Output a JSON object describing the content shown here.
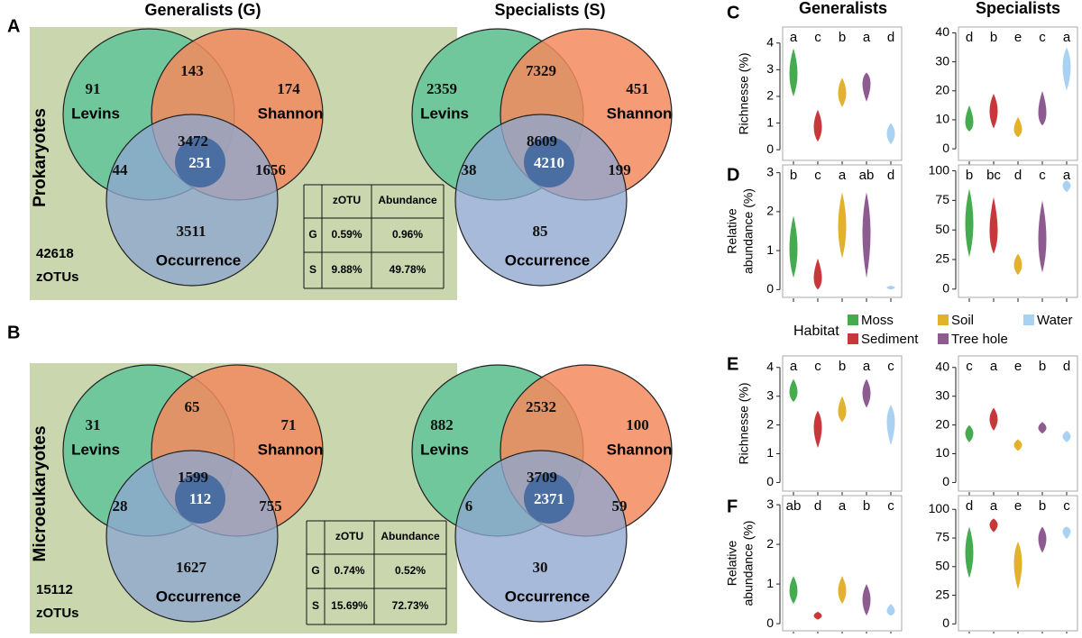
{
  "headers": [
    "Generalists (G)",
    "Specialists (S)"
  ],
  "violin_headers": [
    "Generalists",
    "Specialists"
  ],
  "legend": {
    "title": "Habitat",
    "items": [
      {
        "name": "Moss",
        "color": "#45ab4f"
      },
      {
        "name": "Sediment",
        "color": "#c8383b"
      },
      {
        "name": "Soil",
        "color": "#e2b22c"
      },
      {
        "name": "Tree hole",
        "color": "#8e5b91"
      },
      {
        "name": "Water",
        "color": "#a9d2f2"
      }
    ]
  },
  "chart_data": [
    {
      "type": "venn",
      "label": "A",
      "group": "Prokaryotes",
      "total": "42618",
      "total_unit": "zOTUs",
      "sets": [
        "Levins",
        "Shannon",
        "Occurrence"
      ],
      "diagrams": [
        {
          "counts": [
            "91",
            "143",
            "174",
            "3472",
            "251",
            "44",
            "1656",
            "3511"
          ]
        },
        {
          "counts": [
            "2359",
            "7329",
            "451",
            "8609",
            "4210",
            "38",
            "199",
            "85"
          ]
        }
      ],
      "table": {
        "header": [
          "zOTU",
          "Abundance"
        ],
        "rows": [
          [
            "G",
            "0.59%",
            "0.96%"
          ],
          [
            "S",
            "9.88%",
            "49.78%"
          ]
        ]
      }
    },
    {
      "type": "venn",
      "label": "B",
      "group": "Microeukaryotes",
      "total": "15112",
      "total_unit": "zOTUs",
      "sets": [
        "Levins",
        "Shannon",
        "Occurrence"
      ],
      "diagrams": [
        {
          "counts": [
            "31",
            "65",
            "71",
            "1599",
            "112",
            "28",
            "755",
            "1627"
          ]
        },
        {
          "counts": [
            "882",
            "2532",
            "100",
            "3709",
            "2371",
            "6",
            "59",
            "30"
          ]
        }
      ],
      "table": {
        "header": [
          "zOTU",
          "Abundance"
        ],
        "rows": [
          [
            "G",
            "0.74%",
            "0.52%"
          ],
          [
            "S",
            "15.69%",
            "72.73%"
          ]
        ]
      }
    },
    {
      "type": "violin",
      "label": "C",
      "ylabel": [
        "Richnesse (%)"
      ],
      "plots": [
        {
          "ylim": [
            -0.4,
            4.6
          ],
          "yticks": [
            0,
            1,
            2,
            3,
            4
          ],
          "letters": [
            "a",
            "c",
            "b",
            "a",
            "d"
          ],
          "low": [
            2.0,
            0.3,
            1.6,
            1.8,
            0.2
          ],
          "mid": [
            2.8,
            0.8,
            2.1,
            2.6,
            0.6
          ],
          "high": [
            3.8,
            1.5,
            2.7,
            2.9,
            1.0
          ]
        },
        {
          "ylim": [
            -4,
            42
          ],
          "yticks": [
            0,
            10,
            20,
            30,
            40
          ],
          "letters": [
            "d",
            "b",
            "e",
            "c",
            "a"
          ],
          "low": [
            6,
            7,
            4,
            8,
            20
          ],
          "mid": [
            8,
            13,
            6,
            11,
            29
          ],
          "high": [
            15,
            19,
            11,
            20,
            35
          ]
        }
      ]
    },
    {
      "type": "violin",
      "label": "D",
      "ylabel": [
        "Relative",
        "abundance (%)"
      ],
      "plots": [
        {
          "ylim": [
            -0.2,
            3.2
          ],
          "yticks": [
            0,
            1,
            2,
            3
          ],
          "letters": [
            "b",
            "c",
            "a",
            "ab",
            "d"
          ],
          "low": [
            0.3,
            0,
            0.8,
            0.3,
            0
          ],
          "mid": [
            1.0,
            0.2,
            1.6,
            1.5,
            0.05
          ],
          "high": [
            1.9,
            0.8,
            2.5,
            2.5,
            0.1
          ]
        },
        {
          "ylim": [
            -7,
            105
          ],
          "yticks": [
            0,
            25,
            50,
            75,
            100
          ],
          "letters": [
            "b",
            "bc",
            "d",
            "c",
            "a"
          ],
          "low": [
            27,
            30,
            12,
            14,
            82
          ],
          "mid": [
            55,
            45,
            20,
            40,
            88
          ],
          "high": [
            85,
            78,
            30,
            75,
            92
          ]
        }
      ]
    },
    {
      "type": "violin",
      "label": "E",
      "ylabel": [
        "Richnesse (%)"
      ],
      "plots": [
        {
          "ylim": [
            -0.3,
            4.4
          ],
          "yticks": [
            0,
            1,
            2,
            3,
            4
          ],
          "letters": [
            "a",
            "c",
            "b",
            "a",
            "c"
          ],
          "low": [
            2.8,
            1.2,
            2.1,
            2.6,
            1.3
          ],
          "mid": [
            3.1,
            2.0,
            2.4,
            3.1,
            2.2
          ],
          "high": [
            3.6,
            2.5,
            3.0,
            3.6,
            2.7
          ]
        },
        {
          "ylim": [
            -3,
            44
          ],
          "yticks": [
            0,
            10,
            20,
            30,
            40
          ],
          "letters": [
            "c",
            "a",
            "e",
            "b",
            "d"
          ],
          "low": [
            14,
            18,
            11,
            17,
            14
          ],
          "mid": [
            17,
            22,
            13,
            19,
            16
          ],
          "high": [
            20,
            26,
            15,
            21,
            18
          ]
        }
      ]
    },
    {
      "type": "violin",
      "label": "F",
      "ylabel": [
        "Relative",
        "abundance (%)"
      ],
      "plots": [
        {
          "ylim": [
            -0.18,
            3.23
          ],
          "yticks": [
            0,
            1,
            2,
            3
          ],
          "letters": [
            "ab",
            "d",
            "a",
            "b",
            "c"
          ],
          "low": [
            0.5,
            0.1,
            0.5,
            0.2,
            0.2
          ],
          "mid": [
            0.8,
            0.2,
            0.8,
            0.6,
            0.3
          ],
          "high": [
            1.2,
            0.3,
            1.2,
            1.0,
            0.5
          ]
        },
        {
          "ylim": [
            -6,
            112
          ],
          "yticks": [
            0,
            25,
            50,
            75,
            100
          ],
          "letters": [
            "d",
            "a",
            "e",
            "b",
            "c"
          ],
          "low": [
            40,
            80,
            30,
            62,
            74
          ],
          "mid": [
            62,
            87,
            55,
            75,
            82
          ],
          "high": [
            85,
            92,
            72,
            85,
            85
          ]
        }
      ]
    }
  ]
}
